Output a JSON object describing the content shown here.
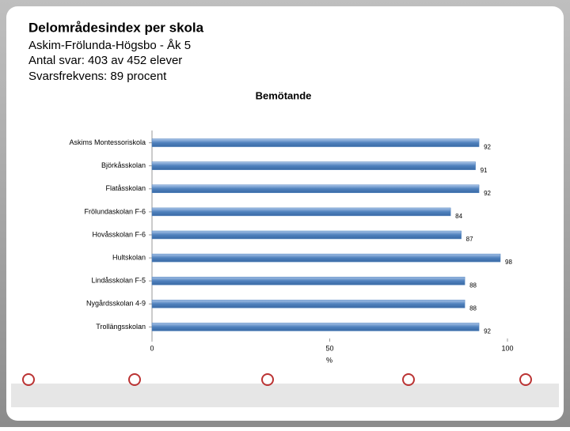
{
  "header": {
    "title": "Delområdesindex per skola",
    "lines": [
      "Askim-Frölunda-Högsbo - Åk 5",
      "Antal svar: 403 av 452 elever",
      "Svarsfrekvens: 89 procent"
    ]
  },
  "chart_data": {
    "type": "hbar",
    "title": "Bemötande",
    "x_label": "%",
    "categories": [
      "Askims Montessoriskola",
      "Björkåsskolan",
      "Flatåsskolan",
      "Frölundaskolan F-6",
      "Hovåsskolan F-6",
      "Hultskolan",
      "Lindåsskolan F-5",
      "Nygårdsskolan 4-9",
      "Trollängsskolan"
    ],
    "values": [
      92,
      91,
      92,
      84,
      87,
      98,
      88,
      88,
      92
    ],
    "color": "#4f81bd",
    "xlim": [
      0,
      100
    ],
    "xticks": [
      0,
      50,
      100
    ],
    "grid": false
  }
}
